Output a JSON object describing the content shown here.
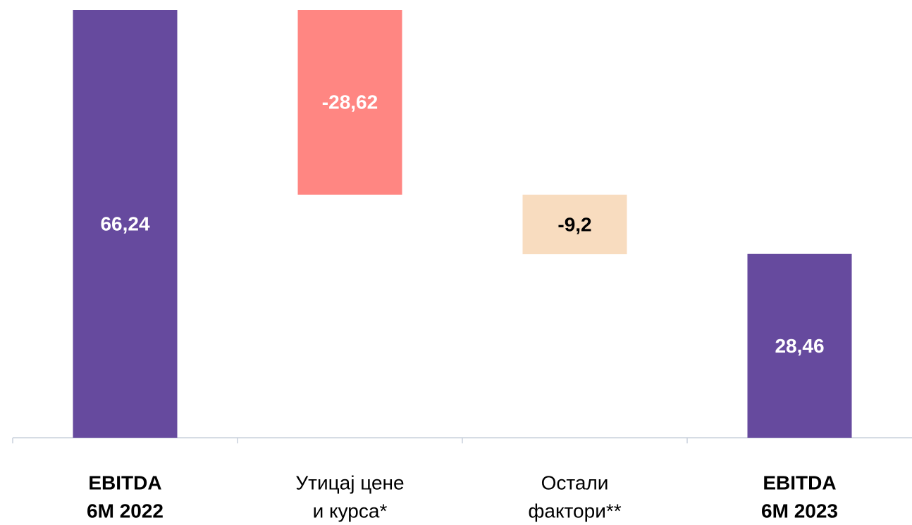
{
  "chart_data": {
    "type": "waterfall",
    "categories": [
      [
        "EBITDA",
        "6M 2022"
      ],
      [
        "Утицај цене",
        "и курса*"
      ],
      [
        "Остали",
        "фактори**"
      ],
      [
        "EBITDA",
        "6M 2023"
      ]
    ],
    "measure": [
      "absolute",
      "relative",
      "relative",
      "absolute"
    ],
    "values": [
      66.24,
      -28.62,
      -9.2,
      28.46
    ],
    "value_labels": [
      "66,24",
      "-28,62",
      "-9,2",
      "28,46"
    ],
    "colors": [
      "#664a9e",
      "#ff8682",
      "#f8dcbf",
      "#664a9e"
    ],
    "label_colors": [
      "#ffffff",
      "#ffffff",
      "#000000",
      "#ffffff"
    ]
  }
}
